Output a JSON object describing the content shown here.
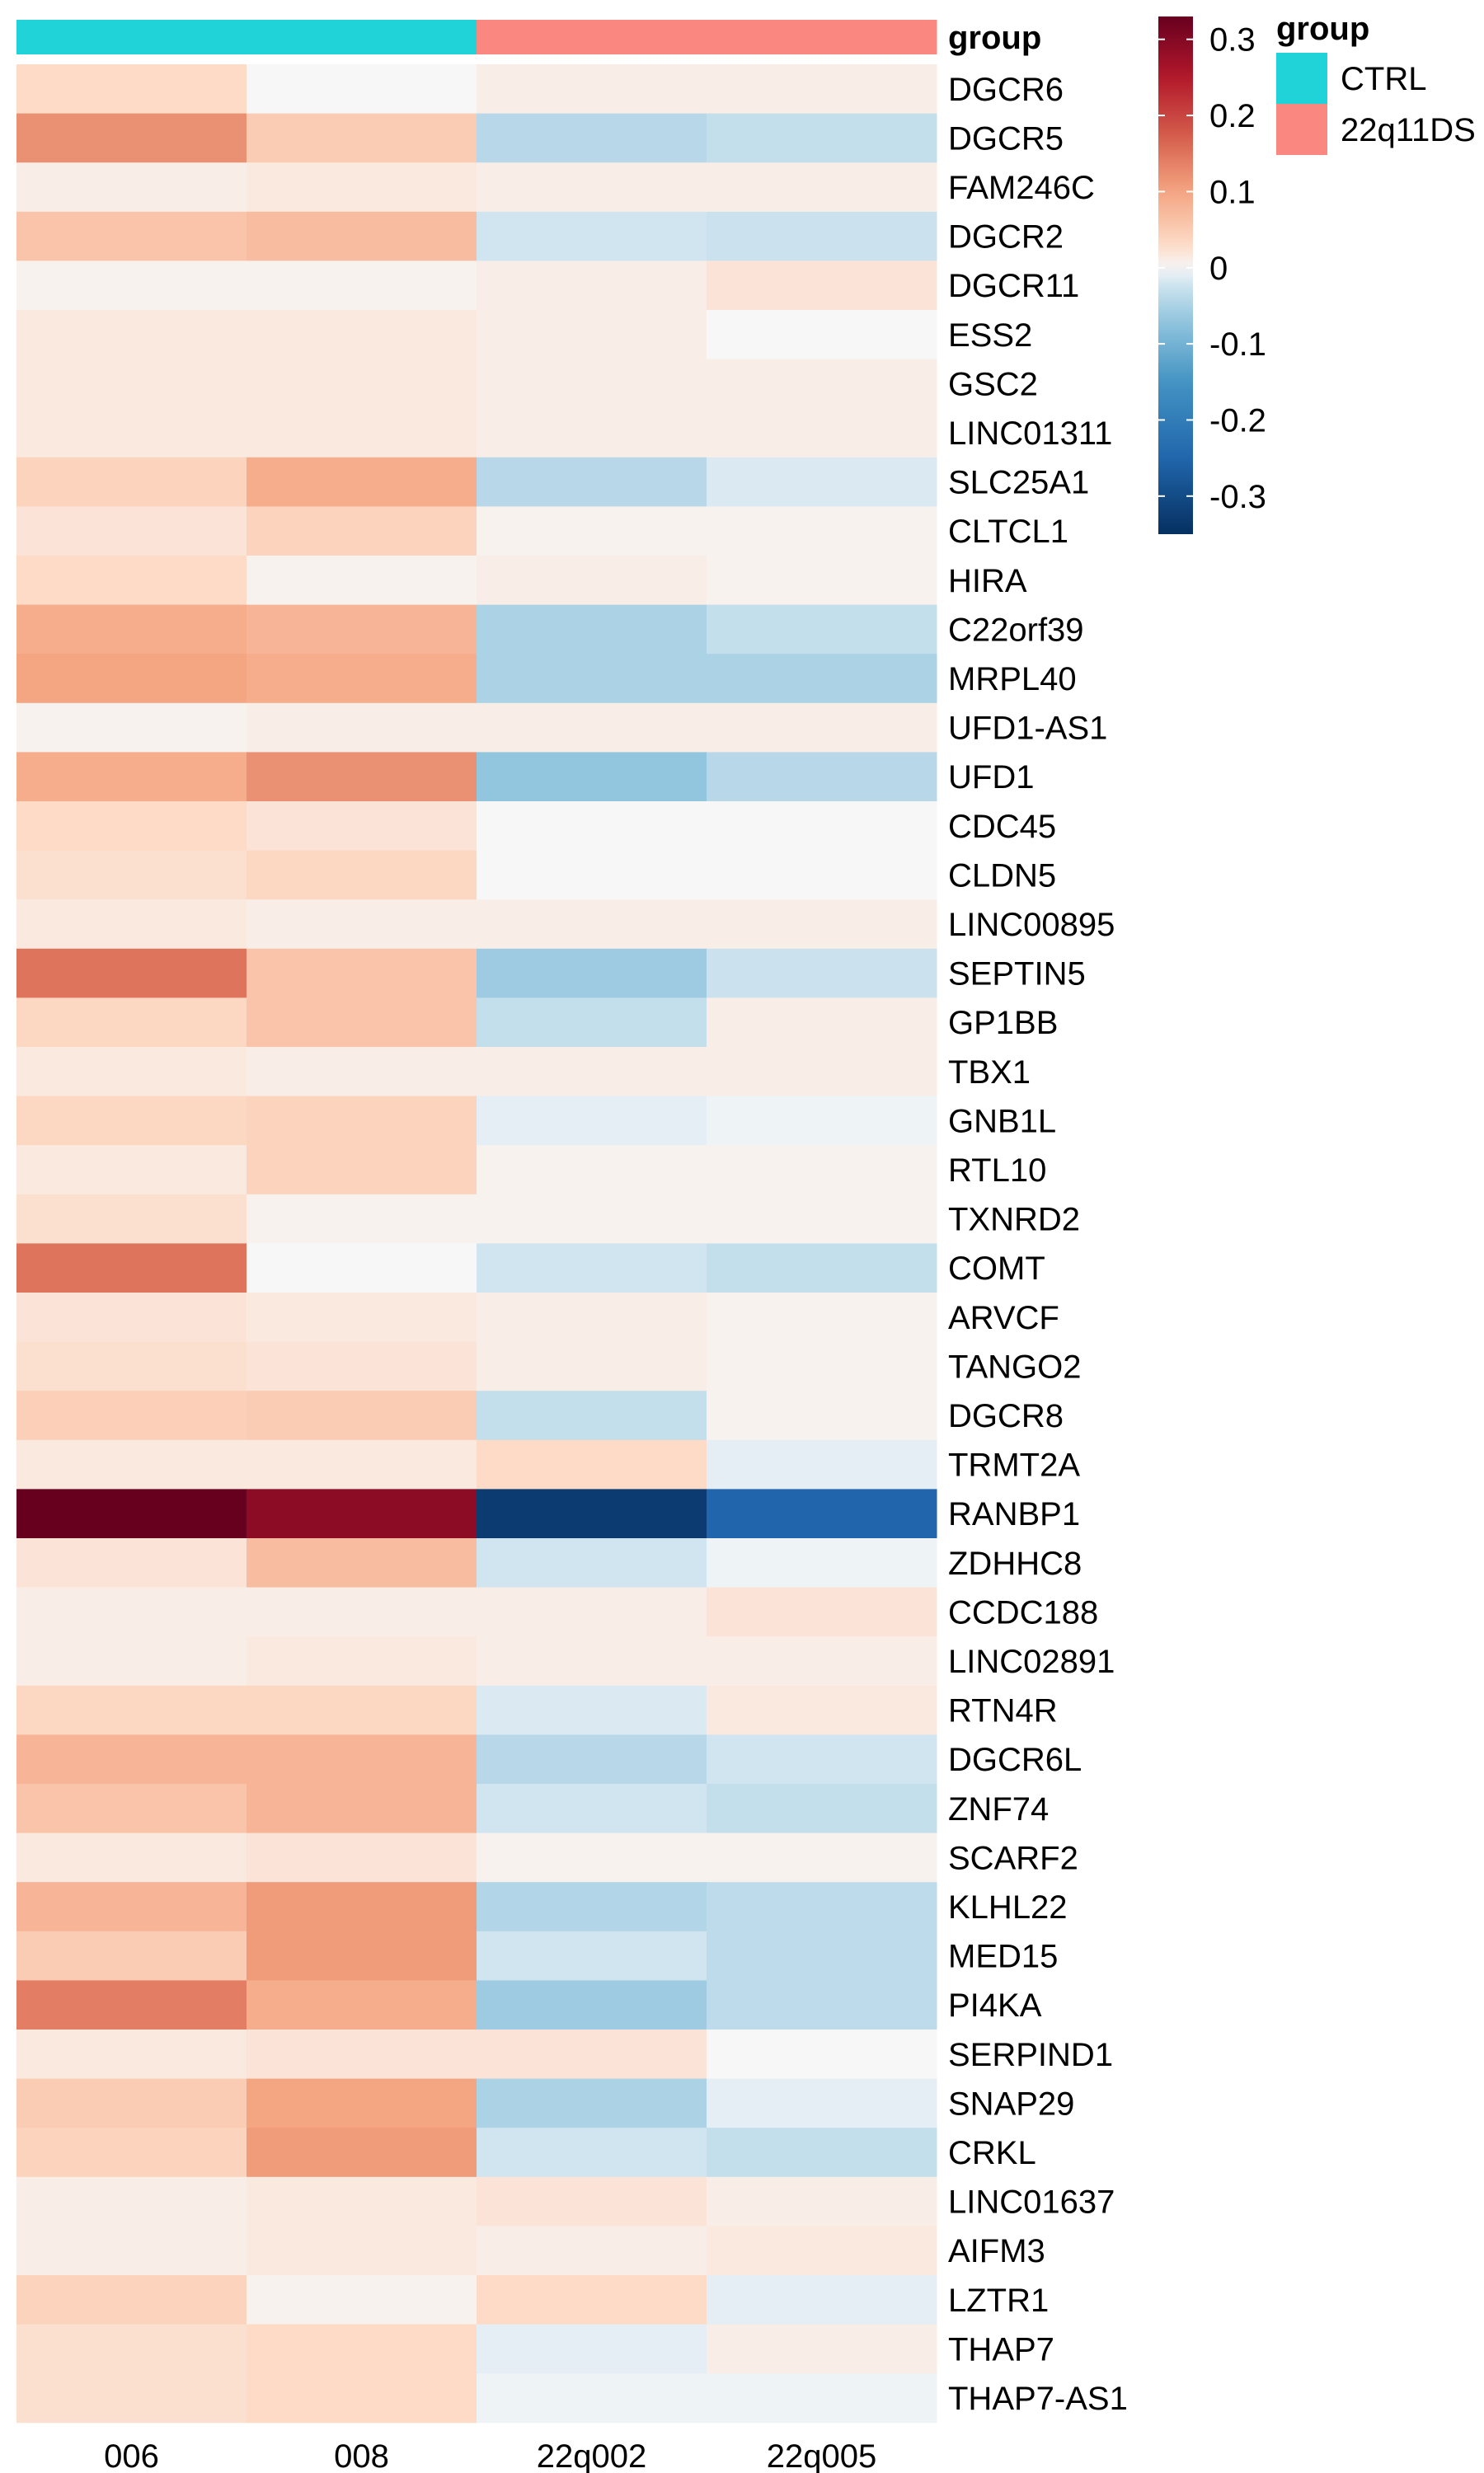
{
  "chart_data": {
    "type": "heatmap",
    "columns": [
      "006",
      "008",
      "22q002",
      "22q005"
    ],
    "column_groups": [
      "CTRL",
      "CTRL",
      "22q11DS",
      "22q11DS"
    ],
    "annotation": {
      "title": "group",
      "legend_title": "group",
      "categories": [
        {
          "name": "CTRL",
          "color": "#1fd3d8"
        },
        {
          "name": "22q11DS",
          "color": "#fa8880"
        }
      ]
    },
    "rows": [
      "DGCR6",
      "DGCR5",
      "FAM246C",
      "DGCR2",
      "DGCR11",
      "ESS2",
      "GSC2",
      "LINC01311",
      "SLC25A1",
      "CLTCL1",
      "HIRA",
      "C22orf39",
      "MRPL40",
      "UFD1-AS1",
      "UFD1",
      "CDC45",
      "CLDN5",
      "LINC00895",
      "SEPTIN5",
      "GP1BB",
      "TBX1",
      "GNB1L",
      "RTL10",
      "TXNRD2",
      "COMT",
      "ARVCF",
      "TANGO2",
      "DGCR8",
      "TRMT2A",
      "RANBP1",
      "ZDHHC8",
      "CCDC188",
      "LINC02891",
      "RTN4R",
      "DGCR6L",
      "ZNF74",
      "SCARF2",
      "KLHL22",
      "MED15",
      "PI4KA",
      "SERPIND1",
      "SNAP29",
      "CRKL",
      "LINC01637",
      "AIFM3",
      "LZTR1",
      "THAP7",
      "THAP7-AS1"
    ],
    "values": [
      [
        0.03,
        0.0,
        0.01,
        0.01
      ],
      [
        0.12,
        0.05,
        -0.04,
        -0.03
      ],
      [
        0.01,
        0.015,
        0.01,
        0.01
      ],
      [
        0.06,
        0.07,
        -0.02,
        -0.025
      ],
      [
        0.005,
        0.005,
        0.01,
        0.02
      ],
      [
        0.015,
        0.015,
        0.01,
        0.0
      ],
      [
        0.015,
        0.015,
        0.01,
        0.01
      ],
      [
        0.015,
        0.015,
        0.01,
        0.01
      ],
      [
        0.04,
        0.09,
        -0.04,
        -0.015
      ],
      [
        0.02,
        0.04,
        0.005,
        0.005
      ],
      [
        0.03,
        0.005,
        0.01,
        0.005
      ],
      [
        0.09,
        0.08,
        -0.05,
        -0.03
      ],
      [
        0.1,
        0.09,
        -0.05,
        -0.05
      ],
      [
        0.005,
        0.01,
        0.01,
        0.01
      ],
      [
        0.09,
        0.12,
        -0.07,
        -0.04
      ],
      [
        0.03,
        0.02,
        0.0,
        0.0
      ],
      [
        0.025,
        0.035,
        0.0,
        0.0
      ],
      [
        0.015,
        0.01,
        0.01,
        0.01
      ],
      [
        0.15,
        0.06,
        -0.06,
        -0.025
      ],
      [
        0.035,
        0.06,
        -0.03,
        0.01
      ],
      [
        0.015,
        0.01,
        0.01,
        0.01
      ],
      [
        0.035,
        0.04,
        -0.01,
        -0.005
      ],
      [
        0.015,
        0.04,
        0.005,
        0.005
      ],
      [
        0.025,
        0.005,
        0.005,
        0.005
      ],
      [
        0.15,
        0.0,
        -0.02,
        -0.03
      ],
      [
        0.02,
        0.015,
        0.01,
        0.005
      ],
      [
        0.025,
        0.02,
        0.01,
        0.005
      ],
      [
        0.045,
        0.05,
        -0.03,
        0.005
      ],
      [
        0.015,
        0.015,
        0.03,
        -0.01
      ],
      [
        0.33,
        0.29,
        -0.33,
        -0.25
      ],
      [
        0.02,
        0.07,
        -0.02,
        -0.005
      ],
      [
        0.01,
        0.01,
        0.01,
        0.02
      ],
      [
        0.01,
        0.015,
        0.01,
        0.01
      ],
      [
        0.035,
        0.035,
        -0.015,
        0.015
      ],
      [
        0.08,
        0.08,
        -0.04,
        -0.02
      ],
      [
        0.06,
        0.08,
        -0.02,
        -0.03
      ],
      [
        0.015,
        0.02,
        0.005,
        0.005
      ],
      [
        0.08,
        0.11,
        -0.045,
        -0.035
      ],
      [
        0.05,
        0.11,
        -0.02,
        -0.035
      ],
      [
        0.14,
        0.09,
        -0.06,
        -0.035
      ],
      [
        0.015,
        0.02,
        0.02,
        0.0
      ],
      [
        0.05,
        0.1,
        -0.05,
        -0.01
      ],
      [
        0.04,
        0.11,
        -0.02,
        -0.03
      ],
      [
        0.01,
        0.015,
        0.02,
        0.01
      ],
      [
        0.01,
        0.015,
        0.01,
        0.015
      ],
      [
        0.04,
        0.005,
        0.03,
        -0.01
      ],
      [
        0.025,
        0.03,
        -0.01,
        0.01
      ],
      [
        0.025,
        0.03,
        -0.005,
        -0.005
      ]
    ],
    "colorbar": {
      "ticks": [
        0.3,
        0.2,
        0.1,
        0,
        -0.1,
        -0.2,
        -0.3
      ],
      "tick_labels": [
        "0.3",
        "0.2",
        "0.1",
        "0",
        "-0.1",
        "-0.2",
        "-0.3"
      ],
      "range": [
        -0.35,
        0.33
      ],
      "stops": [
        {
          "v": -0.35,
          "c": "#053061"
        },
        {
          "v": -0.25,
          "c": "#2166ac"
        },
        {
          "v": -0.15,
          "c": "#4393c3"
        },
        {
          "v": -0.07,
          "c": "#92c5de"
        },
        {
          "v": -0.02,
          "c": "#d1e5f0"
        },
        {
          "v": 0.0,
          "c": "#f7f7f7"
        },
        {
          "v": 0.03,
          "c": "#fddbc7"
        },
        {
          "v": 0.1,
          "c": "#f4a582"
        },
        {
          "v": 0.17,
          "c": "#d6604d"
        },
        {
          "v": 0.25,
          "c": "#b2182b"
        },
        {
          "v": 0.33,
          "c": "#67001f"
        }
      ]
    }
  }
}
